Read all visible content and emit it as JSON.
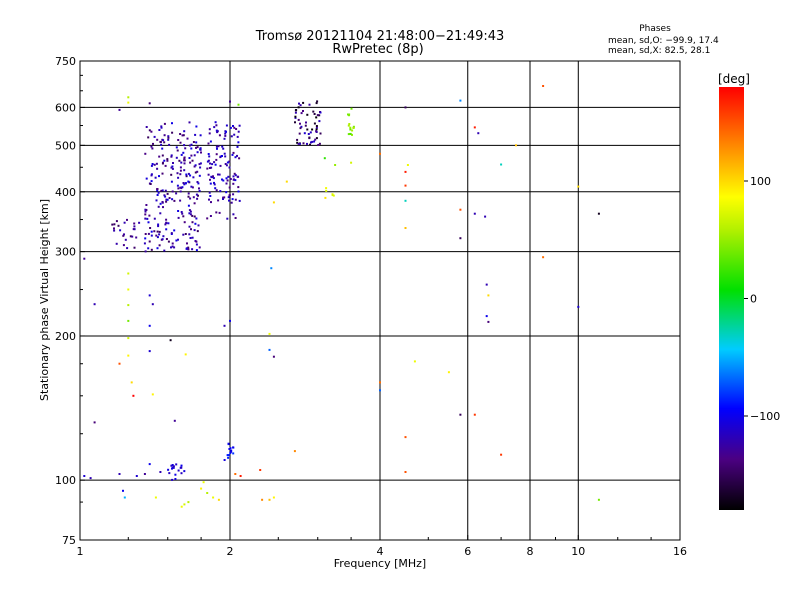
{
  "title": "Tromsø 20121104 21:48:00−21:49:43",
  "subtitle": "RwPretec (8p)",
  "stats": {
    "heading": "Phases",
    "line1": "mean, sd,O: −99.9, 17.4",
    "line2": "mean, sd,X:  82.5, 28.1"
  },
  "colorbar": {
    "label": "[deg]",
    "range": [
      -180,
      180
    ],
    "ticks": [
      {
        "value": 100,
        "label": "100"
      },
      {
        "value": 0,
        "label": "0"
      },
      {
        "value": -100,
        "label": "−100"
      }
    ]
  },
  "chart_data": {
    "type": "scatter",
    "xlabel": "Frequency [MHz]",
    "ylabel": "Stationary phase Virtual Height [km]",
    "xscale": "log",
    "yscale": "log",
    "xlim": [
      1,
      16
    ],
    "ylim": [
      75,
      750
    ],
    "xticks": [
      {
        "value": 1,
        "label": "1"
      },
      {
        "value": 2,
        "label": "2"
      },
      {
        "value": 4,
        "label": "4"
      },
      {
        "value": 6,
        "label": "6"
      },
      {
        "value": 8,
        "label": "8"
      },
      {
        "value": 10,
        "label": "10"
      },
      {
        "value": 16,
        "label": "16"
      }
    ],
    "xgrid": [
      2,
      4,
      6,
      8,
      10
    ],
    "yticks": [
      {
        "value": 75,
        "label": "75"
      },
      {
        "value": 100,
        "label": "100"
      },
      {
        "value": 200,
        "label": "200"
      },
      {
        "value": 300,
        "label": "300"
      },
      {
        "value": 400,
        "label": "400"
      },
      {
        "value": 500,
        "label": "500"
      },
      {
        "value": 600,
        "label": "600"
      },
      {
        "value": 750,
        "label": "750"
      }
    ],
    "ygrid": [
      100,
      200,
      300,
      400,
      500,
      600
    ],
    "grid": true,
    "clusters": [
      {
        "x": [
          1.35,
          1.75
        ],
        "y": [
          300,
          560
        ],
        "n": 260,
        "phase": [
          -150,
          -100
        ]
      },
      {
        "x": [
          1.8,
          2.1
        ],
        "y": [
          350,
          560
        ],
        "n": 120,
        "phase": [
          -140,
          -100
        ]
      },
      {
        "x": [
          2.7,
          3.05
        ],
        "y": [
          500,
          620
        ],
        "n": 60,
        "phase": [
          -180,
          -110
        ]
      },
      {
        "x": [
          1.15,
          1.35
        ],
        "y": [
          305,
          350
        ],
        "n": 25,
        "phase": [
          -150,
          -110
        ]
      },
      {
        "x": [
          1.5,
          1.62
        ],
        "y": [
          100,
          108
        ],
        "n": 18,
        "phase": [
          -120,
          -100
        ]
      },
      {
        "x": [
          1.95,
          2.05
        ],
        "y": [
          110,
          120
        ],
        "n": 14,
        "phase": [
          -110,
          -80
        ]
      },
      {
        "x": [
          3.45,
          3.55
        ],
        "y": [
          520,
          600
        ],
        "n": 16,
        "phase": [
          30,
          60
        ]
      },
      {
        "x": [
          3.1,
          3.25
        ],
        "y": [
          385,
          410
        ],
        "n": 6,
        "phase": [
          70,
          100
        ]
      }
    ],
    "points": [
      {
        "x": 1.02,
        "y": 102,
        "phase": -110
      },
      {
        "x": 1.05,
        "y": 101,
        "phase": -120
      },
      {
        "x": 1.02,
        "y": 290,
        "phase": -130
      },
      {
        "x": 1.07,
        "y": 233,
        "phase": -120
      },
      {
        "x": 1.07,
        "y": 132,
        "phase": -140
      },
      {
        "x": 1.2,
        "y": 103,
        "phase": -120
      },
      {
        "x": 1.22,
        "y": 95,
        "phase": -100
      },
      {
        "x": 1.23,
        "y": 92,
        "phase": -50
      },
      {
        "x": 1.2,
        "y": 175,
        "phase": 150
      },
      {
        "x": 1.2,
        "y": 593,
        "phase": -130
      },
      {
        "x": 1.25,
        "y": 630,
        "phase": 60
      },
      {
        "x": 1.25,
        "y": 614,
        "phase": 80
      },
      {
        "x": 1.25,
        "y": 270,
        "phase": 70
      },
      {
        "x": 1.25,
        "y": 250,
        "phase": 80
      },
      {
        "x": 1.25,
        "y": 232,
        "phase": 60
      },
      {
        "x": 1.25,
        "y": 215,
        "phase": 40
      },
      {
        "x": 1.25,
        "y": 198,
        "phase": 70
      },
      {
        "x": 1.25,
        "y": 182,
        "phase": 90
      },
      {
        "x": 1.27,
        "y": 160,
        "phase": 100
      },
      {
        "x": 1.28,
        "y": 150,
        "phase": 180
      },
      {
        "x": 1.3,
        "y": 102,
        "phase": -110
      },
      {
        "x": 1.35,
        "y": 103,
        "phase": -130
      },
      {
        "x": 1.38,
        "y": 108,
        "phase": -100
      },
      {
        "x": 1.38,
        "y": 612,
        "phase": -140
      },
      {
        "x": 1.38,
        "y": 243,
        "phase": -110
      },
      {
        "x": 1.4,
        "y": 233,
        "phase": -120
      },
      {
        "x": 1.38,
        "y": 210,
        "phase": -100
      },
      {
        "x": 1.38,
        "y": 186,
        "phase": -110
      },
      {
        "x": 1.4,
        "y": 151,
        "phase": 90
      },
      {
        "x": 1.42,
        "y": 92,
        "phase": 80
      },
      {
        "x": 1.45,
        "y": 104,
        "phase": -120
      },
      {
        "x": 1.55,
        "y": 133,
        "phase": -130
      },
      {
        "x": 1.52,
        "y": 196,
        "phase": -170
      },
      {
        "x": 1.6,
        "y": 88,
        "phase": 80
      },
      {
        "x": 1.62,
        "y": 89,
        "phase": 70
      },
      {
        "x": 1.65,
        "y": 90,
        "phase": 60
      },
      {
        "x": 1.63,
        "y": 183,
        "phase": 90
      },
      {
        "x": 1.75,
        "y": 96,
        "phase": 90
      },
      {
        "x": 1.77,
        "y": 99,
        "phase": 80
      },
      {
        "x": 1.8,
        "y": 94,
        "phase": 60
      },
      {
        "x": 1.85,
        "y": 92,
        "phase": 80
      },
      {
        "x": 1.9,
        "y": 91,
        "phase": 100
      },
      {
        "x": 1.95,
        "y": 210,
        "phase": -120
      },
      {
        "x": 2.0,
        "y": 215,
        "phase": -100
      },
      {
        "x": 2.0,
        "y": 617,
        "phase": -130
      },
      {
        "x": 2.05,
        "y": 103,
        "phase": 140
      },
      {
        "x": 2.1,
        "y": 102,
        "phase": 170
      },
      {
        "x": 2.08,
        "y": 608,
        "phase": 40
      },
      {
        "x": 2.3,
        "y": 105,
        "phase": 160
      },
      {
        "x": 2.32,
        "y": 91,
        "phase": 130
      },
      {
        "x": 2.4,
        "y": 91,
        "phase": 110
      },
      {
        "x": 2.45,
        "y": 92,
        "phase": 90
      },
      {
        "x": 2.42,
        "y": 277,
        "phase": -60
      },
      {
        "x": 2.4,
        "y": 202,
        "phase": 80
      },
      {
        "x": 2.4,
        "y": 187,
        "phase": -70
      },
      {
        "x": 2.45,
        "y": 181,
        "phase": -140
      },
      {
        "x": 2.45,
        "y": 380,
        "phase": 100
      },
      {
        "x": 2.6,
        "y": 420,
        "phase": 100
      },
      {
        "x": 2.7,
        "y": 115,
        "phase": 130
      },
      {
        "x": 3.5,
        "y": 460,
        "phase": 70
      },
      {
        "x": 3.25,
        "y": 455,
        "phase": 50
      },
      {
        "x": 3.1,
        "y": 470,
        "phase": 20
      },
      {
        "x": 4.0,
        "y": 480,
        "phase": 140
      },
      {
        "x": 4.0,
        "y": 160,
        "phase": 140
      },
      {
        "x": 4.0,
        "y": 154,
        "phase": -70
      },
      {
        "x": 4.5,
        "y": 600,
        "phase": -150
      },
      {
        "x": 4.5,
        "y": 123,
        "phase": 150
      },
      {
        "x": 4.5,
        "y": 104,
        "phase": 150
      },
      {
        "x": 4.5,
        "y": 440,
        "phase": 170
      },
      {
        "x": 4.55,
        "y": 455,
        "phase": 80
      },
      {
        "x": 4.5,
        "y": 412,
        "phase": 160
      },
      {
        "x": 4.5,
        "y": 383,
        "phase": -30
      },
      {
        "x": 4.5,
        "y": 336,
        "phase": 110
      },
      {
        "x": 4.7,
        "y": 177,
        "phase": 80
      },
      {
        "x": 5.5,
        "y": 168,
        "phase": 90
      },
      {
        "x": 5.8,
        "y": 620,
        "phase": -60
      },
      {
        "x": 5.8,
        "y": 367,
        "phase": 150
      },
      {
        "x": 5.8,
        "y": 320,
        "phase": -150
      },
      {
        "x": 5.8,
        "y": 137,
        "phase": -150
      },
      {
        "x": 6.2,
        "y": 545,
        "phase": 170
      },
      {
        "x": 6.3,
        "y": 530,
        "phase": -120
      },
      {
        "x": 6.2,
        "y": 360,
        "phase": -120
      },
      {
        "x": 6.5,
        "y": 355,
        "phase": -120
      },
      {
        "x": 6.2,
        "y": 137,
        "phase": 160
      },
      {
        "x": 6.55,
        "y": 256,
        "phase": -120
      },
      {
        "x": 6.6,
        "y": 243,
        "phase": 100
      },
      {
        "x": 6.55,
        "y": 220,
        "phase": -100
      },
      {
        "x": 6.6,
        "y": 214,
        "phase": -140
      },
      {
        "x": 7.0,
        "y": 456,
        "phase": -30
      },
      {
        "x": 7.0,
        "y": 113,
        "phase": 160
      },
      {
        "x": 7.5,
        "y": 500,
        "phase": 110
      },
      {
        "x": 8.5,
        "y": 665,
        "phase": 150
      },
      {
        "x": 8.5,
        "y": 292,
        "phase": 140
      },
      {
        "x": 10.0,
        "y": 410,
        "phase": 100
      },
      {
        "x": 10.0,
        "y": 230,
        "phase": -110
      },
      {
        "x": 11.0,
        "y": 360,
        "phase": -170
      },
      {
        "x": 11.0,
        "y": 91,
        "phase": 40
      }
    ]
  }
}
